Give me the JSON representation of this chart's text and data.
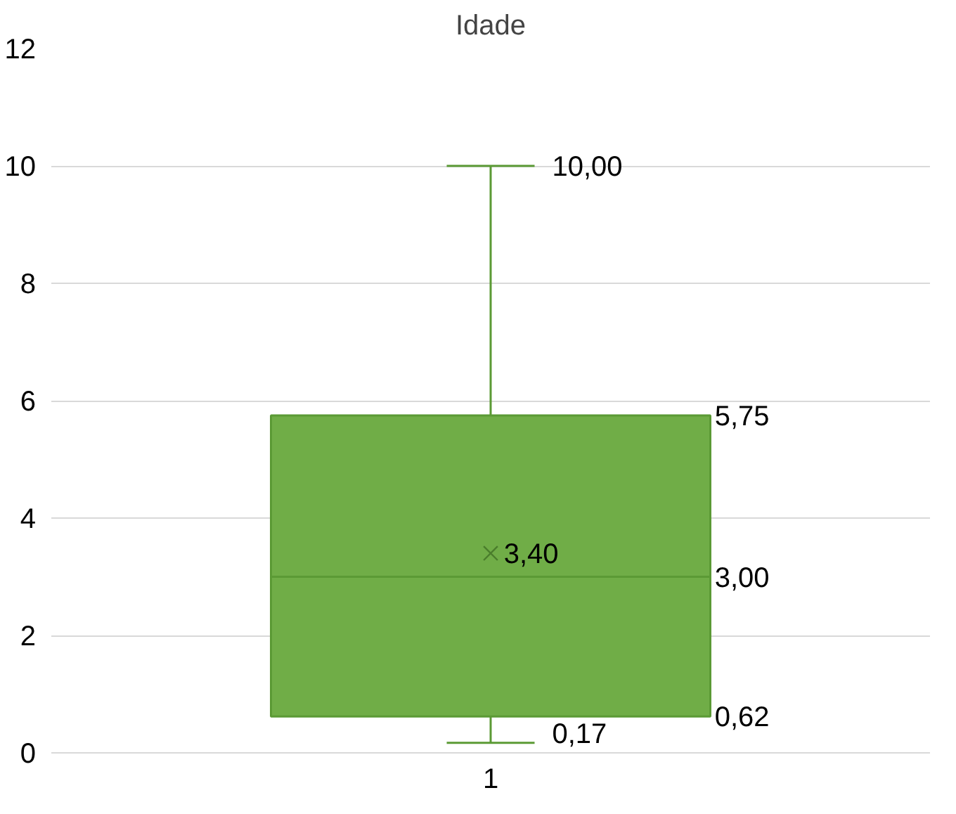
{
  "chart_data": {
    "type": "box",
    "title": "Idade",
    "categories": [
      "1"
    ],
    "boxes": [
      {
        "low": 0.17,
        "q1": 0.62,
        "median": 3.0,
        "q3": 5.75,
        "high": 10.0,
        "mean": 3.4
      }
    ],
    "color": "#70ad47",
    "ylim": [
      0,
      12
    ],
    "yticks": [
      0,
      2,
      4,
      6,
      8,
      10,
      12
    ],
    "grid": "y",
    "marker": "cross",
    "annotations": [
      "10,00",
      "5,75",
      "3,40",
      "3,00",
      "0,62",
      "0,17"
    ]
  }
}
